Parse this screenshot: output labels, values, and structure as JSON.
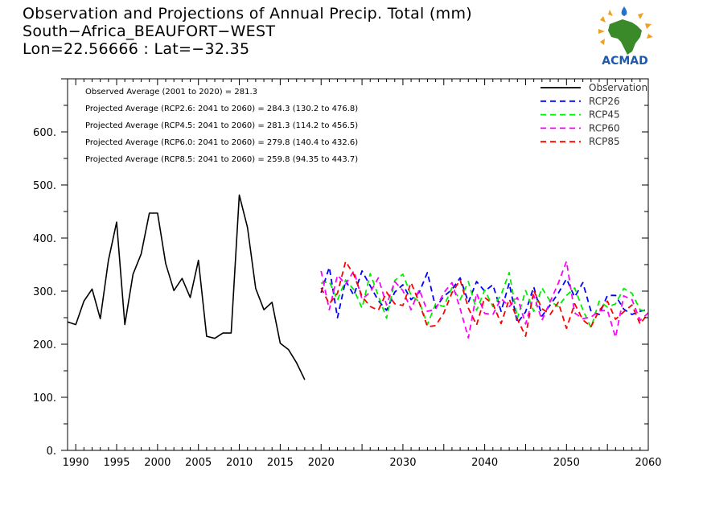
{
  "header": {
    "title": "Observation and Projections of Annual Precip. Total (mm)",
    "location": "South−Africa_BEAUFORT−WEST",
    "coords": "Lon=22.56666 : Lat=−32.35"
  },
  "logo": {
    "text": "ACMAD",
    "icon": "africa-continent-logo"
  },
  "colors": {
    "Observation": "#000000",
    "RCP26": "#0000ff",
    "RCP45": "#00ee00",
    "RCP60": "#ff00ff",
    "RCP85": "#ff0000"
  },
  "chart_data": {
    "type": "line",
    "xlim": [
      1989,
      2060
    ],
    "ylim": [
      0,
      700
    ],
    "y_ticks": [
      0,
      100,
      200,
      300,
      400,
      500,
      600
    ],
    "y_tick_labels": [
      "0.",
      "100.",
      "200.",
      "300.",
      "400.",
      "500.",
      "600."
    ],
    "x_ticks": [
      1990,
      1995,
      2000,
      2005,
      2010,
      2015,
      2020,
      2030,
      2040,
      2050,
      2060
    ],
    "x_tick_labels": [
      "1990",
      "1995",
      "2000",
      "2005",
      "2010",
      "2015",
      "2020",
      "2030",
      "2040",
      "2050",
      "2060"
    ],
    "grid": false,
    "legend_position": "top-right",
    "stats": [
      "Observed Average (2001 to 2020) = 281.3",
      "Projected Average (RCP2.6: 2041 to 2060) = 284.3 (130.2 to 476.8)",
      "Projected Average (RCP4.5: 2041 to 2060) = 281.3 (114.2 to 456.5)",
      "Projected Average (RCP6.0: 2041 to 2060) = 279.8 (140.4 to 432.6)",
      "Projected Average (RCP8.5: 2041 to 2060) = 259.8 (94.35 to 443.7)"
    ],
    "series": [
      {
        "name": "Observation",
        "x": [
          1989,
          1990,
          1991,
          1992,
          1993,
          1994,
          1995,
          1996,
          1997,
          1998,
          1999,
          2000,
          2001,
          2002,
          2003,
          2004,
          2005,
          2006,
          2007,
          2008,
          2009,
          2010,
          2011,
          2012,
          2013,
          2014,
          2015,
          2016,
          2017,
          2018,
          2019,
          2020
        ],
        "values": [
          242,
          237,
          281,
          304,
          248,
          358,
          430,
          237,
          332,
          370,
          447,
          447,
          352,
          301,
          324,
          288,
          358,
          215,
          211,
          221,
          221,
          481,
          420,
          305,
          265,
          279,
          202,
          190,
          165,
          133,
          null,
          null
        ]
      },
      {
        "name": "RCP26",
        "x": [
          2020,
          2021,
          2022,
          2023,
          2024,
          2025,
          2026,
          2027,
          2028,
          2029,
          2030,
          2031,
          2032,
          2033,
          2034,
          2035,
          2036,
          2037,
          2038,
          2039,
          2040,
          2041,
          2042,
          2043,
          2044,
          2045,
          2046,
          2047,
          2048,
          2049,
          2050,
          2051,
          2052,
          2053,
          2054,
          2055,
          2056,
          2057,
          2058,
          2059,
          2060
        ],
        "values": [
          297,
          345,
          250,
          320,
          292,
          338,
          310,
          282,
          264,
          298,
          312,
          284,
          298,
          335,
          269,
          290,
          303,
          325,
          279,
          318,
          300,
          312,
          262,
          315,
          240,
          261,
          308,
          253,
          274,
          296,
          323,
          289,
          316,
          262,
          256,
          292,
          292,
          266,
          256,
          262,
          266
        ]
      },
      {
        "name": "RCP45",
        "x": [
          2020,
          2021,
          2022,
          2023,
          2024,
          2025,
          2026,
          2027,
          2028,
          2029,
          2030,
          2031,
          2032,
          2033,
          2034,
          2035,
          2036,
          2037,
          2038,
          2039,
          2040,
          2041,
          2042,
          2043,
          2044,
          2045,
          2046,
          2047,
          2048,
          2049,
          2050,
          2051,
          2052,
          2053,
          2054,
          2055,
          2056,
          2057,
          2058,
          2059,
          2060
        ],
        "values": [
          315,
          318,
          283,
          321,
          303,
          268,
          333,
          291,
          249,
          320,
          332,
          292,
          280,
          237,
          276,
          271,
          306,
          284,
          318,
          264,
          302,
          271,
          293,
          335,
          249,
          301,
          262,
          306,
          281,
          271,
          292,
          306,
          265,
          231,
          281,
          270,
          276,
          305,
          296,
          265,
          261
        ]
      },
      {
        "name": "RCP60",
        "x": [
          2020,
          2021,
          2022,
          2023,
          2024,
          2025,
          2026,
          2027,
          2028,
          2029,
          2030,
          2031,
          2032,
          2033,
          2034,
          2035,
          2036,
          2037,
          2038,
          2039,
          2040,
          2041,
          2042,
          2043,
          2044,
          2045,
          2046,
          2047,
          2048,
          2049,
          2050,
          2051,
          2052,
          2053,
          2054,
          2055,
          2056,
          2057,
          2058,
          2059,
          2060
        ],
        "values": [
          338,
          265,
          330,
          313,
          338,
          285,
          298,
          325,
          274,
          318,
          301,
          265,
          303,
          262,
          266,
          297,
          316,
          267,
          212,
          296,
          258,
          256,
          286,
          271,
          288,
          238,
          292,
          245,
          280,
          315,
          356,
          259,
          248,
          251,
          263,
          264,
          213,
          291,
          284,
          245,
          259
        ]
      },
      {
        "name": "RCP85",
        "x": [
          2020,
          2021,
          2022,
          2023,
          2024,
          2025,
          2026,
          2027,
          2028,
          2029,
          2030,
          2031,
          2032,
          2033,
          2034,
          2035,
          2036,
          2037,
          2038,
          2039,
          2040,
          2041,
          2042,
          2043,
          2044,
          2045,
          2046,
          2047,
          2048,
          2049,
          2050,
          2051,
          2052,
          2053,
          2054,
          2055,
          2056,
          2057,
          2058,
          2059,
          2060
        ],
        "values": [
          306,
          276,
          296,
          356,
          331,
          290,
          271,
          264,
          298,
          276,
          273,
          316,
          278,
          233,
          235,
          259,
          297,
          321,
          268,
          236,
          288,
          276,
          239,
          285,
          247,
          215,
          301,
          267,
          256,
          279,
          230,
          276,
          246,
          233,
          264,
          281,
          247,
          261,
          274,
          238,
          259
        ]
      }
    ]
  }
}
